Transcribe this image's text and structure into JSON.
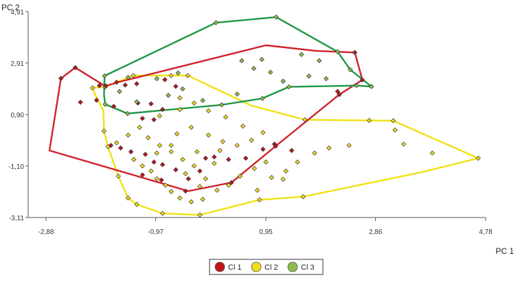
{
  "chart_data": {
    "type": "scatter",
    "title": "",
    "xlabel": "PC 1",
    "ylabel": "PC 2",
    "xlim": [
      -2.88,
      4.78
    ],
    "ylim": [
      -3.11,
      4.91
    ],
    "x_ticks": [
      -2.88,
      -0.97,
      0.95,
      2.86,
      4.78
    ],
    "y_ticks": [
      -3.11,
      -1.1,
      0.9,
      2.91,
      4.91
    ],
    "x_tick_labels": [
      "-2,88",
      "-0,97",
      "0,95",
      "2,86",
      "4,78"
    ],
    "y_tick_labels": [
      "-3,11",
      "-1,10",
      "0,90",
      "2,91",
      "4,91"
    ],
    "grid": false,
    "legend_position": "bottom-center",
    "series": [
      {
        "name": "Cl 1",
        "color": "#c0141c",
        "hull": [
          [
            -2.37,
            2.73
          ],
          [
            -2.62,
            2.31
          ],
          [
            -2.82,
            -0.5
          ],
          [
            -0.4,
            -2.08
          ],
          [
            0.35,
            -1.75
          ],
          [
            1.12,
            -0.33
          ],
          [
            2.23,
            1.68
          ],
          [
            2.63,
            2.25
          ],
          [
            2.5,
            3.32
          ],
          [
            1.83,
            3.38
          ],
          [
            0.95,
            3.6
          ],
          [
            -1.61,
            2.17
          ],
          [
            -1.85,
            2.01
          ]
        ],
        "points": [
          [
            -2.62,
            2.31
          ],
          [
            -2.37,
            2.73
          ],
          [
            -1.65,
            2.16
          ],
          [
            -1.84,
            2.02
          ],
          [
            -1.95,
            2.03
          ],
          [
            -1.5,
            2.05
          ],
          [
            -1.3,
            2.1
          ],
          [
            -0.81,
            2.26
          ],
          [
            -0.62,
            2.0
          ],
          [
            -2.28,
            1.38
          ],
          [
            -2.0,
            1.46
          ],
          [
            -1.7,
            1.22
          ],
          [
            -1.28,
            1.35
          ],
          [
            -1.05,
            1.32
          ],
          [
            -0.85,
            1.1
          ],
          [
            -1.2,
            0.75
          ],
          [
            -1.0,
            0.7
          ],
          [
            -1.75,
            -0.3
          ],
          [
            -1.58,
            -0.4
          ],
          [
            -1.4,
            -0.55
          ],
          [
            -1.15,
            -0.65
          ],
          [
            -1.0,
            -0.95
          ],
          [
            -0.85,
            -1.05
          ],
          [
            -0.62,
            -1.25
          ],
          [
            -0.4,
            -1.6
          ],
          [
            -0.2,
            -1.3
          ],
          [
            0.05,
            -0.75
          ],
          [
            0.3,
            -0.85
          ],
          [
            0.6,
            -0.8
          ],
          [
            0.9,
            -0.45
          ],
          [
            1.1,
            -0.25
          ],
          [
            1.4,
            -0.5
          ],
          [
            -0.87,
            -1.65
          ],
          [
            -1.2,
            -1.45
          ],
          [
            -0.45,
            -2.08
          ],
          [
            0.35,
            -1.75
          ],
          [
            1.12,
            -0.33
          ],
          [
            2.23,
            1.68
          ],
          [
            2.63,
            2.25
          ],
          [
            2.5,
            3.32
          ],
          [
            2.2,
            1.8
          ],
          [
            -0.1,
            -0.8
          ]
        ]
      },
      {
        "name": "Cl 2",
        "color": "#f0dc1e",
        "hull": [
          [
            -2.07,
            1.94
          ],
          [
            -1.85,
            1.98
          ],
          [
            -1.36,
            2.42
          ],
          [
            -0.7,
            2.42
          ],
          [
            -0.41,
            2.42
          ],
          [
            0.7,
            1.25
          ],
          [
            1.63,
            0.7
          ],
          [
            2.75,
            0.67
          ],
          [
            3.17,
            0.66
          ],
          [
            4.65,
            -0.8
          ],
          [
            3.65,
            -1.35
          ],
          [
            1.6,
            -2.3
          ],
          [
            0.84,
            -2.42
          ],
          [
            -0.2,
            -3.01
          ],
          [
            -0.85,
            -2.95
          ],
          [
            -1.3,
            -2.6
          ],
          [
            -1.45,
            -2.35
          ],
          [
            -1.62,
            -1.5
          ],
          [
            -1.8,
            -0.35
          ],
          [
            -1.87,
            0.26
          ],
          [
            -1.88,
            1.05
          ],
          [
            -2.02,
            1.65
          ]
        ],
        "points": [
          [
            -2.07,
            1.94
          ],
          [
            -1.85,
            1.98
          ],
          [
            -1.36,
            2.42
          ],
          [
            -0.7,
            2.42
          ],
          [
            -0.41,
            2.42
          ],
          [
            1.63,
            0.7
          ],
          [
            2.75,
            0.67
          ],
          [
            3.17,
            0.66
          ],
          [
            4.65,
            -0.8
          ],
          [
            3.85,
            -0.6
          ],
          [
            3.35,
            -0.25
          ],
          [
            3.2,
            0.3
          ],
          [
            2.4,
            -0.3
          ],
          [
            2.05,
            -0.4
          ],
          [
            1.8,
            -0.6
          ],
          [
            1.5,
            -0.95
          ],
          [
            1.3,
            -1.3
          ],
          [
            1.25,
            -1.62
          ],
          [
            1.6,
            -2.3
          ],
          [
            0.84,
            -2.42
          ],
          [
            -0.2,
            -3.01
          ],
          [
            -0.85,
            -2.95
          ],
          [
            -1.3,
            -2.6
          ],
          [
            -1.45,
            -2.35
          ],
          [
            -1.62,
            -1.5
          ],
          [
            -1.8,
            -0.35
          ],
          [
            -1.87,
            0.26
          ],
          [
            -1.65,
            -0.2
          ],
          [
            -1.45,
            0.1
          ],
          [
            -1.35,
            -0.85
          ],
          [
            -1.2,
            -1.1
          ],
          [
            -1.05,
            -1.3
          ],
          [
            -0.95,
            -1.6
          ],
          [
            -0.8,
            -1.85
          ],
          [
            -0.7,
            -2.1
          ],
          [
            -0.55,
            -2.35
          ],
          [
            -0.35,
            -2.5
          ],
          [
            -0.15,
            -2.4
          ],
          [
            0.1,
            -2.05
          ],
          [
            0.3,
            -1.85
          ],
          [
            0.5,
            -1.5
          ],
          [
            0.75,
            -1.2
          ],
          [
            0.95,
            -0.95
          ],
          [
            1.05,
            -1.55
          ],
          [
            0.8,
            -2.05
          ],
          [
            -0.1,
            -1.6
          ],
          [
            -0.3,
            -1.1
          ],
          [
            -0.5,
            -0.85
          ],
          [
            -0.7,
            -0.55
          ],
          [
            -0.9,
            -0.3
          ],
          [
            -1.1,
            0.0
          ],
          [
            -0.6,
            0.15
          ],
          [
            -0.35,
            0.4
          ],
          [
            -0.05,
            0.1
          ],
          [
            0.2,
            -0.15
          ],
          [
            0.45,
            -0.3
          ],
          [
            0.7,
            -0.1
          ],
          [
            0.9,
            0.2
          ],
          [
            0.55,
            0.45
          ],
          [
            0.25,
            0.8
          ],
          [
            -0.05,
            1.05
          ],
          [
            -0.3,
            1.35
          ],
          [
            -0.55,
            1.55
          ],
          [
            -0.9,
            0.85
          ],
          [
            -1.25,
            0.4
          ],
          [
            -0.7,
            -0.3
          ],
          [
            -0.25,
            -0.55
          ],
          [
            0.15,
            -0.5
          ],
          [
            0.05,
            -1.0
          ],
          [
            -0.45,
            -1.4
          ],
          [
            -0.95,
            -0.6
          ],
          [
            -0.55,
            1.1
          ],
          [
            -0.2,
            -1.9
          ]
        ]
      },
      {
        "name": "Cl 3",
        "color": "#8cbe4b",
        "hull": [
          [
            -1.86,
            2.41
          ],
          [
            -1.87,
            1.66
          ],
          [
            -1.85,
            1.3
          ],
          [
            -1.46,
            0.94
          ],
          [
            0.18,
            1.28
          ],
          [
            0.89,
            1.53
          ],
          [
            1.35,
            1.98
          ],
          [
            2.53,
            2.03
          ],
          [
            2.79,
            1.99
          ],
          [
            2.42,
            2.65
          ],
          [
            2.2,
            3.35
          ],
          [
            1.13,
            4.7
          ],
          [
            0.08,
            4.48
          ]
        ],
        "points": [
          [
            -1.86,
            2.41
          ],
          [
            -1.85,
            1.3
          ],
          [
            -1.46,
            0.94
          ],
          [
            0.18,
            1.28
          ],
          [
            0.89,
            1.53
          ],
          [
            1.35,
            1.98
          ],
          [
            2.53,
            2.03
          ],
          [
            2.79,
            1.99
          ],
          [
            2.42,
            2.65
          ],
          [
            2.2,
            3.35
          ],
          [
            1.13,
            4.7
          ],
          [
            0.08,
            4.48
          ],
          [
            0.53,
            3.0
          ],
          [
            0.88,
            3.05
          ],
          [
            1.57,
            3.24
          ],
          [
            1.88,
            3.0
          ],
          [
            1.7,
            2.4
          ],
          [
            1.03,
            2.55
          ],
          [
            0.74,
            2.7
          ],
          [
            -0.58,
            2.52
          ],
          [
            -0.95,
            2.3
          ],
          [
            -1.45,
            2.35
          ],
          [
            -1.6,
            1.8
          ],
          [
            -1.3,
            1.4
          ],
          [
            -0.75,
            1.65
          ],
          [
            -0.5,
            1.9
          ],
          [
            -0.15,
            1.45
          ],
          [
            0.45,
            1.7
          ],
          [
            1.25,
            2.2
          ],
          [
            2.0,
            2.3
          ]
        ]
      }
    ]
  }
}
